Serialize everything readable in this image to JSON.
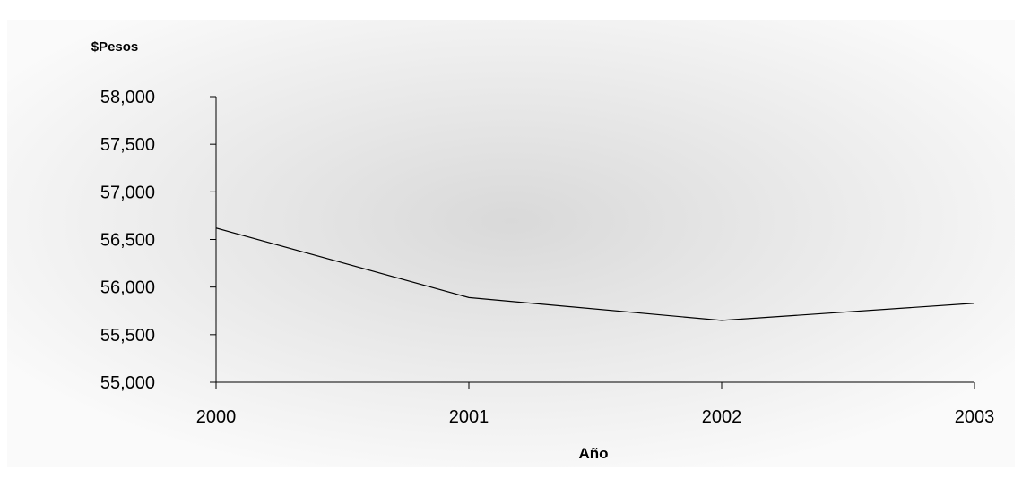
{
  "chart_data": {
    "type": "line",
    "title": "",
    "xlabel": "Año",
    "ylabel": "$Pesos",
    "x": [
      "2000",
      "2001",
      "2002",
      "2003"
    ],
    "series": [
      {
        "values": [
          56620,
          55890,
          55650,
          55830
        ],
        "color": "#000000"
      }
    ],
    "ylim": [
      55000,
      58000
    ],
    "yticks": [
      {
        "value": 55000,
        "label": "55,000"
      },
      {
        "value": 55500,
        "label": "55,500"
      },
      {
        "value": 56000,
        "label": "56,000"
      },
      {
        "value": 56500,
        "label": "56,500"
      },
      {
        "value": 57000,
        "label": "57,000"
      },
      {
        "value": 57500,
        "label": "57,500"
      },
      {
        "value": 58000,
        "label": "58,000"
      }
    ],
    "grid": false,
    "legend": "none",
    "colors": {
      "plot_background_center": "#d9d9d9",
      "plot_background_edge": "#fafafa",
      "axis": "#000000",
      "text": "#000000"
    }
  }
}
